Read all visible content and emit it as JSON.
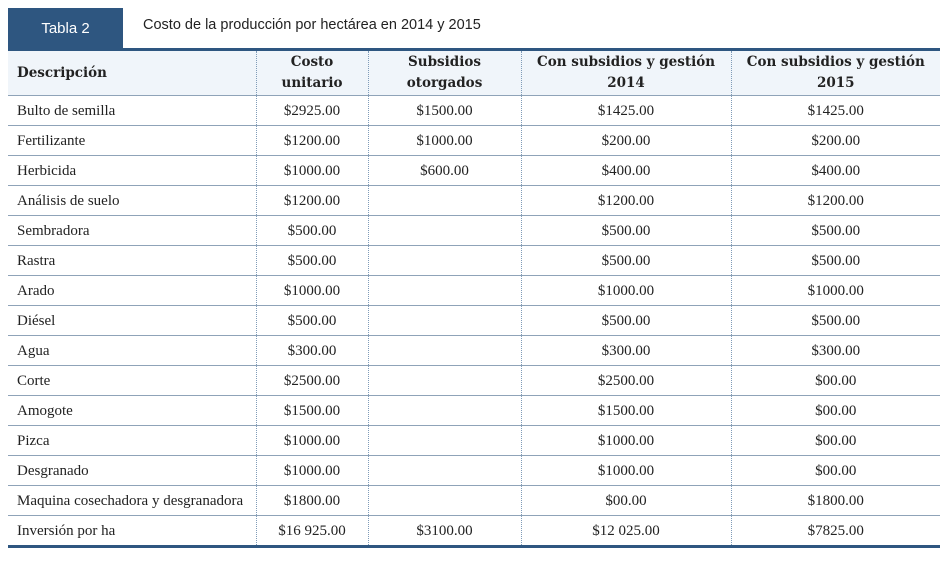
{
  "header": {
    "label": "Tabla 2",
    "title": "Costo de la producción por hectárea en 2014 y 2015"
  },
  "table": {
    "columns": [
      "Descripción",
      "Costo unitario",
      "Subsidios otorgados",
      "Con subsidios y gestión 2014",
      "Con subsidios y gestión 2015"
    ],
    "rows": [
      [
        "Bulto de semilla",
        "$2925.00",
        "$1500.00",
        "$1425.00",
        "$1425.00"
      ],
      [
        "Fertilizante",
        "$1200.00",
        "$1000.00",
        "$200.00",
        "$200.00"
      ],
      [
        "Herbicida",
        "$1000.00",
        "$600.00",
        "$400.00",
        "$400.00"
      ],
      [
        "Análisis de suelo",
        "$1200.00",
        null,
        "$1200.00",
        "$1200.00"
      ],
      [
        "Sembradora",
        "$500.00",
        null,
        "$500.00",
        "$500.00"
      ],
      [
        "Rastra",
        "$500.00",
        null,
        "$500.00",
        "$500.00"
      ],
      [
        "Arado",
        "$1000.00",
        null,
        "$1000.00",
        "$1000.00"
      ],
      [
        "Diésel",
        "$500.00",
        null,
        "$500.00",
        "$500.00"
      ],
      [
        "Agua",
        "$300.00",
        null,
        "$300.00",
        "$300.00"
      ],
      [
        "Corte",
        "$2500.00",
        null,
        "$2500.00",
        "$00.00"
      ],
      [
        "Amogote",
        "$1500.00",
        null,
        "$1500.00",
        "$00.00"
      ],
      [
        "Pizca",
        "$1000.00",
        null,
        "$1000.00",
        "$00.00"
      ],
      [
        "Desgranado",
        "$1000.00",
        null,
        "$1000.00",
        "$00.00"
      ],
      [
        "Maquina cosechadora y desgranadora",
        "$1800.00",
        null,
        "$00.00",
        "$1800.00"
      ],
      [
        "Inversión por ha",
        "$16 925.00",
        "$3100.00",
        "$12 025.00",
        "$7825.00"
      ]
    ]
  }
}
